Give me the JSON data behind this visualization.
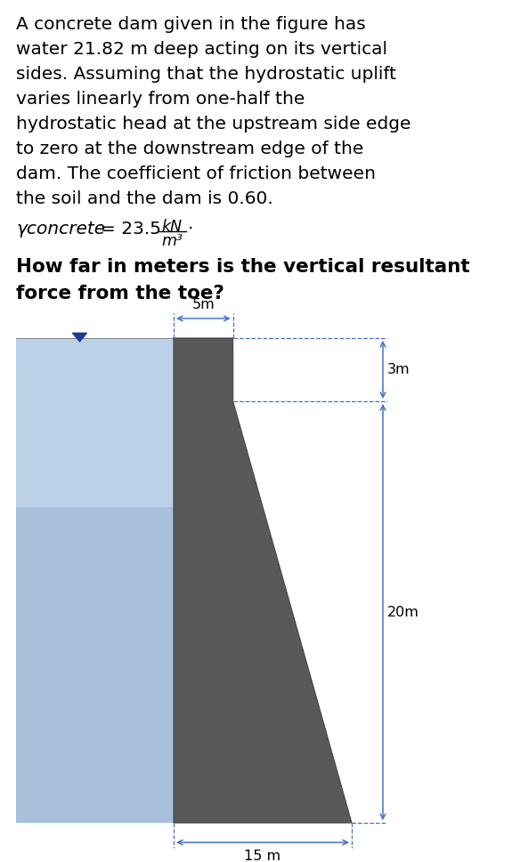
{
  "text_lines": [
    "A concrete dam given in the figure has",
    "water 21.82 m deep acting on its vertical",
    "sides. Assuming that the hydrostatic uplift",
    "varies linearly from one-half the",
    "hydrostatic head at the upstream side edge",
    "to zero at the downstream edge of the",
    "dam. The coefficient of friction between",
    "the soil and the dam is 0.60."
  ],
  "gamma_label": "γconcrete",
  "gamma_eq": "= 23.5",
  "gamma_kN": "kN",
  "gamma_m3": "m³",
  "gamma_dot": "·",
  "question_lines": [
    "How far in meters is the vertical resultant",
    "force from the toe?"
  ],
  "dim_5m": "5m",
  "dim_3m": "3m",
  "dim_20m": "20m",
  "dim_15m": "15 m",
  "water_color": "#a8c0dc",
  "water_grad_color": "#c5d8ee",
  "dam_color": "#595959",
  "bg_color": "#ffffff",
  "arrow_color": "#4472c4",
  "text_color": "#000000",
  "triangle_color": "#1f3a8f",
  "main_fontsize": 14.5,
  "question_fontsize": 15.5,
  "dim_fontsize": 11.5
}
